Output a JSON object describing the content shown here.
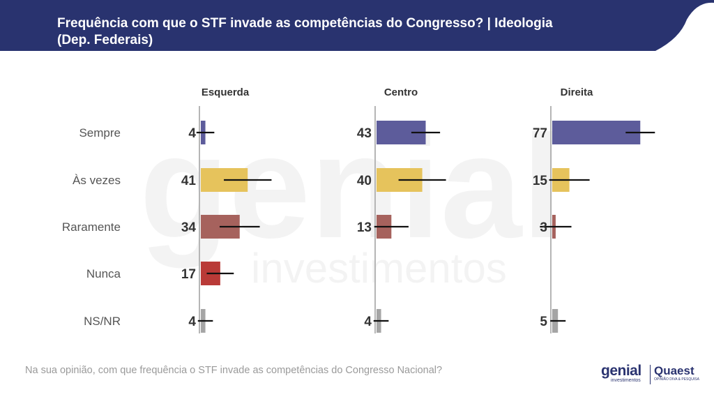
{
  "header": {
    "title_line1": "Frequência com que o STF invade as competências do Congresso? | Ideologia",
    "title_line2": "(Dep. Federais)",
    "color": "#29336f"
  },
  "chart_data": {
    "type": "bar",
    "orientation": "horizontal",
    "categories": [
      "Sempre",
      "Às vezes",
      "Raramente",
      "Nunca",
      "NS/NR"
    ],
    "bar_colors": [
      "#5d5c9b",
      "#e6c35c",
      "#a6625d",
      "#b93a37",
      "#a5a5a5"
    ],
    "panels": [
      {
        "name": "Esquerda",
        "values": [
          4,
          41,
          34,
          17,
          4
        ]
      },
      {
        "name": "Centro",
        "values": [
          43,
          40,
          13,
          null,
          4
        ]
      },
      {
        "name": "Direita",
        "values": [
          77,
          15,
          3,
          null,
          5
        ]
      }
    ],
    "error_bars": true
  },
  "watermark": {
    "line1": "genial",
    "line2": "investimentos"
  },
  "footer": {
    "question": "Na sua opinião, com que frequência o STF invade as competências do Congresso Nacional?",
    "logo_genial": "genial",
    "logo_genial_sub": "investimentos",
    "logo_quaest": "Quaest",
    "logo_quaest_sub": "OPINIÃO DIVA & PESQUISA"
  }
}
